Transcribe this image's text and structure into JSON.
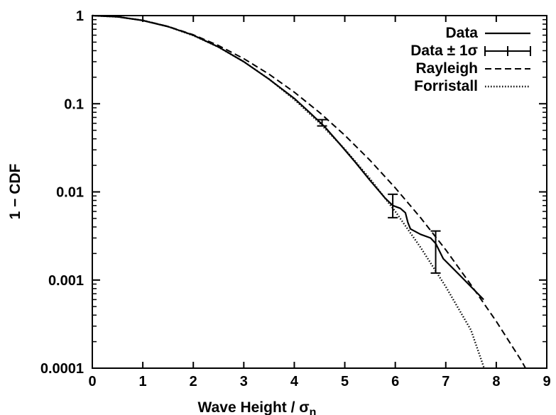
{
  "chart_data": {
    "type": "line",
    "title": "",
    "xlabel": "Wave Height / σ",
    "xlabel_subscript": "η",
    "ylabel": "1 − CDF",
    "xlim": [
      0,
      9
    ],
    "ylim": [
      0.0001,
      1
    ],
    "y_scale": "log",
    "grid": false,
    "legend_position": "top-right",
    "x_ticks": [
      0,
      1,
      2,
      3,
      4,
      5,
      6,
      7,
      8,
      9
    ],
    "x_tick_labels": [
      "0",
      "1",
      "2",
      "3",
      "4",
      "5",
      "6",
      "7",
      "8",
      "9"
    ],
    "y_ticks": [
      0.0001,
      0.001,
      0.01,
      0.1,
      1
    ],
    "y_tick_labels": [
      "0.0001",
      "0.001",
      "0.01",
      "0.1",
      "1"
    ],
    "series": [
      {
        "name": "Data",
        "style": "solid",
        "x": [
          0,
          0.5,
          1,
          1.5,
          2,
          2.5,
          3,
          3.5,
          4,
          4.3,
          4.6,
          4.9,
          5.2,
          5.5,
          5.8,
          5.95,
          6.1,
          6.2,
          6.25,
          6.3,
          6.5,
          6.7,
          6.8,
          6.95,
          7.3,
          7.75
        ],
        "y": [
          1,
          0.97,
          0.88,
          0.75,
          0.6,
          0.44,
          0.3,
          0.19,
          0.115,
          0.08,
          0.055,
          0.035,
          0.022,
          0.0135,
          0.0085,
          0.007,
          0.0065,
          0.0058,
          0.0045,
          0.0038,
          0.0033,
          0.003,
          0.0026,
          0.00175,
          0.0011,
          0.0006
        ]
      },
      {
        "name": "Data ± 1σ",
        "style": "errorbar",
        "x": [
          4.55,
          5.95,
          6.8
        ],
        "y": [
          0.061,
          0.007,
          0.0024
        ],
        "y_low": [
          0.056,
          0.0051,
          0.0012
        ],
        "y_high": [
          0.066,
          0.0094,
          0.0036
        ]
      },
      {
        "name": "Rayleigh",
        "style": "dashed",
        "formula": "exp(-x^2/8)",
        "x": [
          0,
          0.5,
          1,
          1.5,
          2,
          2.5,
          3,
          3.5,
          4,
          4.5,
          5,
          5.5,
          6,
          6.5,
          7,
          7.5,
          8,
          8.5,
          8.58
        ],
        "y": [
          1,
          0.9692,
          0.8825,
          0.7548,
          0.6065,
          0.4578,
          0.3247,
          0.2163,
          0.1353,
          0.0796,
          0.0439,
          0.0228,
          0.0111,
          0.0051,
          0.0022,
          0.00088,
          0.00034,
          0.000121,
          0.0001
        ]
      },
      {
        "name": "Forristall",
        "style": "dotted",
        "x": [
          0,
          0.5,
          1,
          1.5,
          2,
          2.5,
          3,
          3.5,
          4,
          4.5,
          5,
          5.5,
          6,
          6.5,
          7,
          7.5,
          7.76
        ],
        "y": [
          1,
          0.9696,
          0.8826,
          0.751,
          0.5957,
          0.4392,
          0.3003,
          0.1904,
          0.1118,
          0.0607,
          0.0305,
          0.0141,
          0.006,
          0.00235,
          0.00084,
          0.00027,
          0.0001
        ]
      }
    ]
  }
}
